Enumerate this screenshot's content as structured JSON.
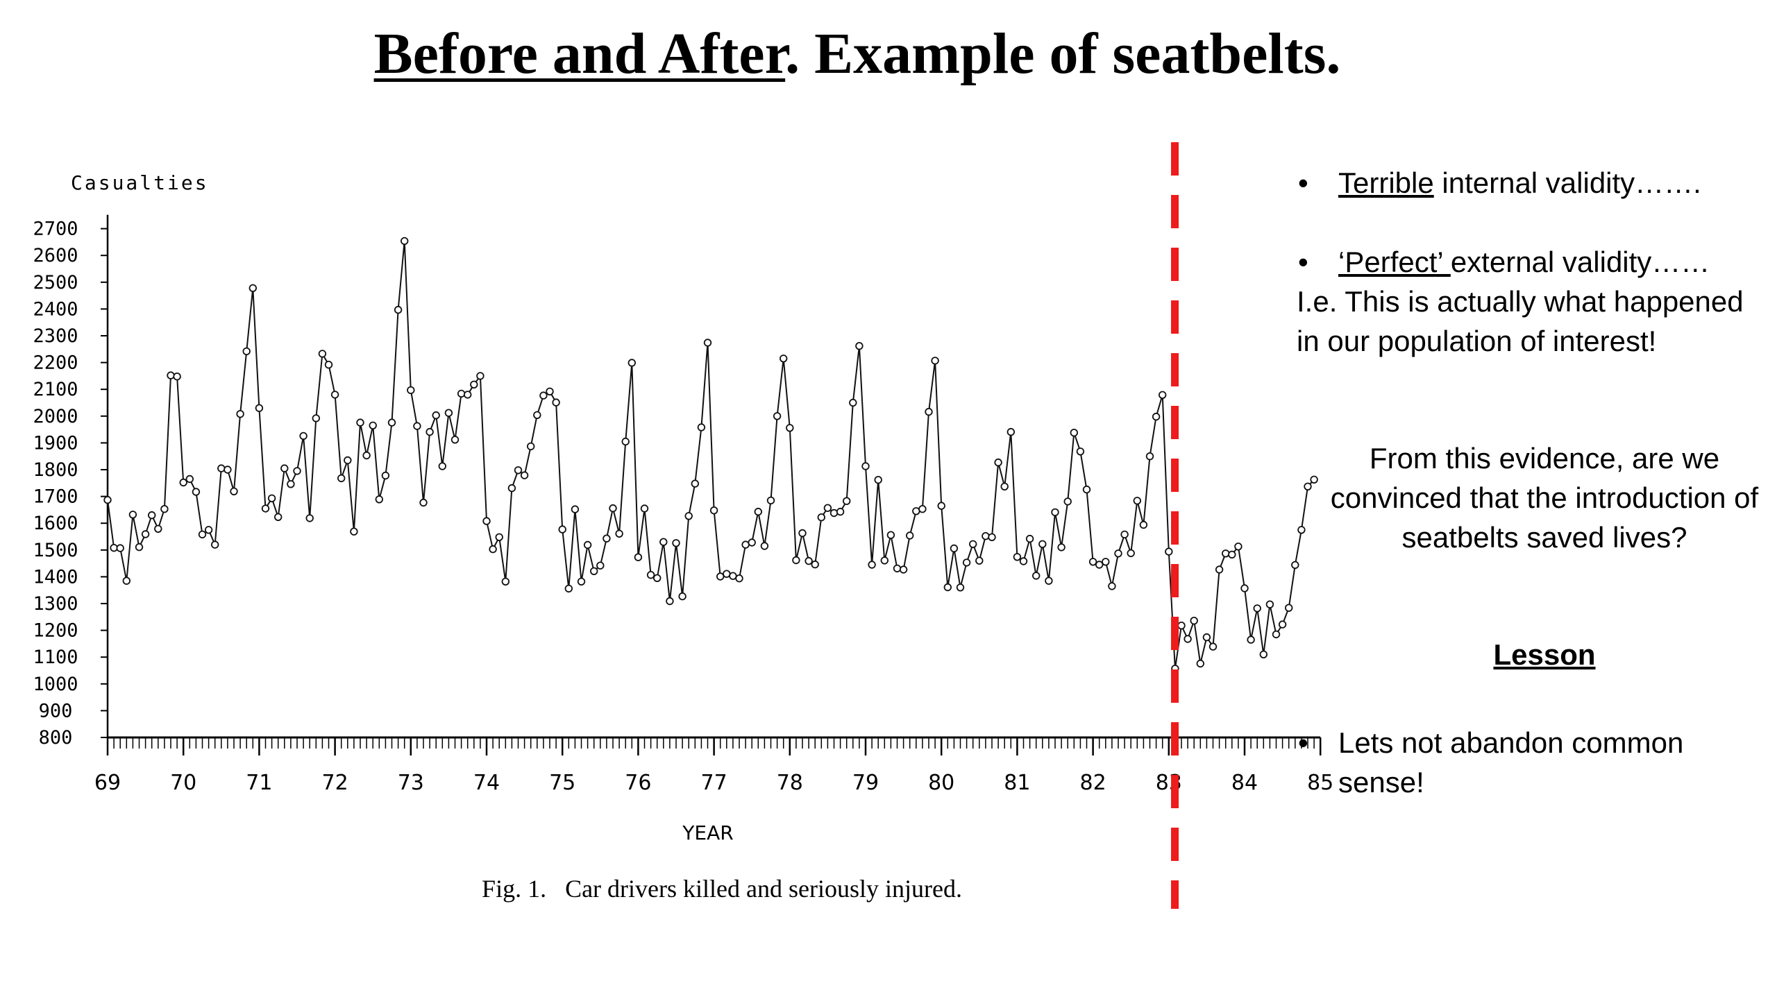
{
  "slide": {
    "title_underlined": "Before and After",
    "title_rest": ". Example of seatbelts."
  },
  "notes": {
    "bullet1_underlined": "Terrible",
    "bullet1_rest": " internal validity…….",
    "bullet2_underlined": "‘Perfect’ ",
    "bullet2_rest": "external validity……",
    "explanation": "I.e. This is actually what happened in our population of interest!",
    "question": "From this evidence, are we convinced that the introduction of seatbelts saved lives?",
    "lesson_title": "Lesson",
    "lesson_text": "Lets not abandon common sense!",
    "bullet_glyph": "•"
  },
  "chart_data": {
    "type": "line",
    "ylabel": "Casualties",
    "xlabel": "YEAR",
    "caption": "Fig. 1.   Car drivers killed and seriously injured.",
    "ylim": [
      800,
      2700
    ],
    "yticks": [
      800,
      900,
      1000,
      1100,
      1200,
      1300,
      1400,
      1500,
      1600,
      1700,
      1800,
      1900,
      2000,
      2100,
      2200,
      2300,
      2400,
      2500,
      2600,
      2700
    ],
    "xticks": [
      "69",
      "70",
      "71",
      "72",
      "73",
      "74",
      "75",
      "76",
      "77",
      "78",
      "79",
      "80",
      "81",
      "82",
      "83",
      "84",
      "85"
    ],
    "x_start_year": 69,
    "frequency": "monthly",
    "intervention": {
      "at_year": 83.08,
      "color": "#ee1c1c",
      "style": "dashed"
    },
    "series": [
      {
        "values": [
          1687,
          1508,
          1507,
          1385,
          1632,
          1511,
          1559,
          1630,
          1579,
          1653,
          2152,
          2148,
          1752,
          1765,
          1717,
          1558,
          1575,
          1520,
          1805,
          1800,
          1719,
          2008,
          2242,
          2478,
          2030,
          1655,
          1693,
          1623,
          1805,
          1746,
          1795,
          1926,
          1619,
          1992,
          2233,
          2192,
          2080,
          1768,
          1835,
          1569,
          1976,
          1853,
          1965,
          1689,
          1778,
          1976,
          2397,
          2654,
          2097,
          1963,
          1677,
          1941,
          2003,
          1813,
          2012,
          1912,
          2084,
          2080,
          2118,
          2150,
          1608,
          1503,
          1548,
          1382,
          1731,
          1798,
          1779,
          1887,
          2004,
          2077,
          2092,
          2051,
          1577,
          1356,
          1652,
          1382,
          1519,
          1421,
          1442,
          1543,
          1656,
          1561,
          1905,
          2199,
          1473,
          1655,
          1407,
          1395,
          1530,
          1309,
          1526,
          1327,
          1627,
          1748,
          1958,
          2274,
          1648,
          1401,
          1411,
          1403,
          1394,
          1520,
          1528,
          1643,
          1515,
          1685,
          2000,
          2215,
          1956,
          1462,
          1563,
          1459,
          1446,
          1622,
          1657,
          1638,
          1643,
          1683,
          2050,
          2262,
          1813,
          1445,
          1762,
          1461,
          1556,
          1431,
          1427,
          1554,
          1645,
          1653,
          2016,
          2207,
          1665,
          1361,
          1506,
          1360,
          1453,
          1522,
          1460,
          1552,
          1548,
          1827,
          1737,
          1941,
          1474,
          1458,
          1542,
          1404,
          1522,
          1385,
          1641,
          1510,
          1681,
          1938,
          1868,
          1726,
          1456,
          1445,
          1456,
          1365,
          1487,
          1558,
          1488,
          1684,
          1594,
          1850,
          1998,
          2079,
          1494,
          1057,
          1218,
          1168,
          1236,
          1076,
          1174,
          1139,
          1427,
          1487,
          1483,
          1513,
          1357,
          1165,
          1282,
          1110,
          1297,
          1185,
          1222,
          1284,
          1444,
          1575,
          1737,
          1763
        ]
      }
    ]
  }
}
